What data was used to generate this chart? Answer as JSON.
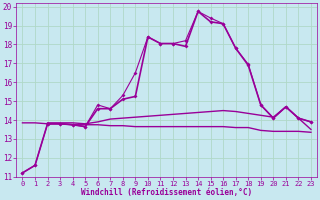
{
  "xlabel": "Windchill (Refroidissement éolien,°C)",
  "xlim": [
    -0.5,
    23.5
  ],
  "ylim": [
    11,
    20.2
  ],
  "yticks": [
    11,
    12,
    13,
    14,
    15,
    16,
    17,
    18,
    19,
    20
  ],
  "xticks": [
    0,
    1,
    2,
    3,
    4,
    5,
    6,
    7,
    8,
    9,
    10,
    11,
    12,
    13,
    14,
    15,
    16,
    17,
    18,
    19,
    20,
    21,
    22,
    23
  ],
  "bg_color": "#c8e8f0",
  "grid_color": "#b0d8c8",
  "line_color": "#990099",
  "line1_x": [
    0,
    1,
    2,
    3,
    4,
    5,
    6,
    7,
    8,
    9,
    10,
    11,
    12,
    13,
    14,
    15,
    16,
    17,
    18,
    19,
    20,
    21,
    22,
    23
  ],
  "line1_y": [
    11.2,
    11.6,
    13.8,
    13.8,
    13.75,
    13.65,
    14.8,
    14.6,
    15.3,
    16.5,
    18.4,
    18.05,
    18.05,
    18.2,
    19.75,
    19.4,
    19.1,
    17.8,
    16.95,
    14.8,
    14.1,
    14.7,
    14.1,
    13.9
  ],
  "line2_x": [
    0,
    1,
    2,
    3,
    4,
    5,
    6,
    7,
    8,
    9,
    10,
    11,
    12,
    13,
    14,
    15,
    16,
    17,
    18,
    19,
    20,
    21,
    22,
    23
  ],
  "line2_y": [
    11.2,
    11.6,
    13.8,
    13.8,
    13.75,
    13.65,
    14.6,
    14.6,
    15.1,
    15.25,
    18.4,
    18.05,
    18.05,
    17.9,
    19.75,
    19.2,
    19.1,
    17.8,
    16.9,
    14.8,
    14.1,
    14.7,
    14.1,
    13.9
  ],
  "line3_x": [
    0,
    1,
    2,
    3,
    4,
    5,
    6,
    7,
    8,
    9,
    10,
    11,
    12,
    13,
    14,
    15,
    16,
    17,
    18,
    19,
    20,
    21,
    22,
    23
  ],
  "line3_y": [
    13.85,
    13.85,
    13.8,
    13.8,
    13.75,
    13.75,
    13.75,
    13.7,
    13.7,
    13.65,
    13.65,
    13.65,
    13.65,
    13.65,
    13.65,
    13.65,
    13.65,
    13.6,
    13.6,
    13.45,
    13.4,
    13.4,
    13.4,
    13.35
  ],
  "line4_x": [
    2,
    3,
    4,
    5,
    6,
    7,
    8,
    9,
    10,
    11,
    12,
    13,
    14,
    15,
    16,
    17,
    18,
    19,
    20,
    21,
    22,
    23
  ],
  "line4_y": [
    13.85,
    13.85,
    13.85,
    13.8,
    13.9,
    14.05,
    14.1,
    14.15,
    14.2,
    14.25,
    14.3,
    14.35,
    14.4,
    14.45,
    14.5,
    14.45,
    14.35,
    14.25,
    14.15,
    14.7,
    14.1,
    13.5
  ]
}
